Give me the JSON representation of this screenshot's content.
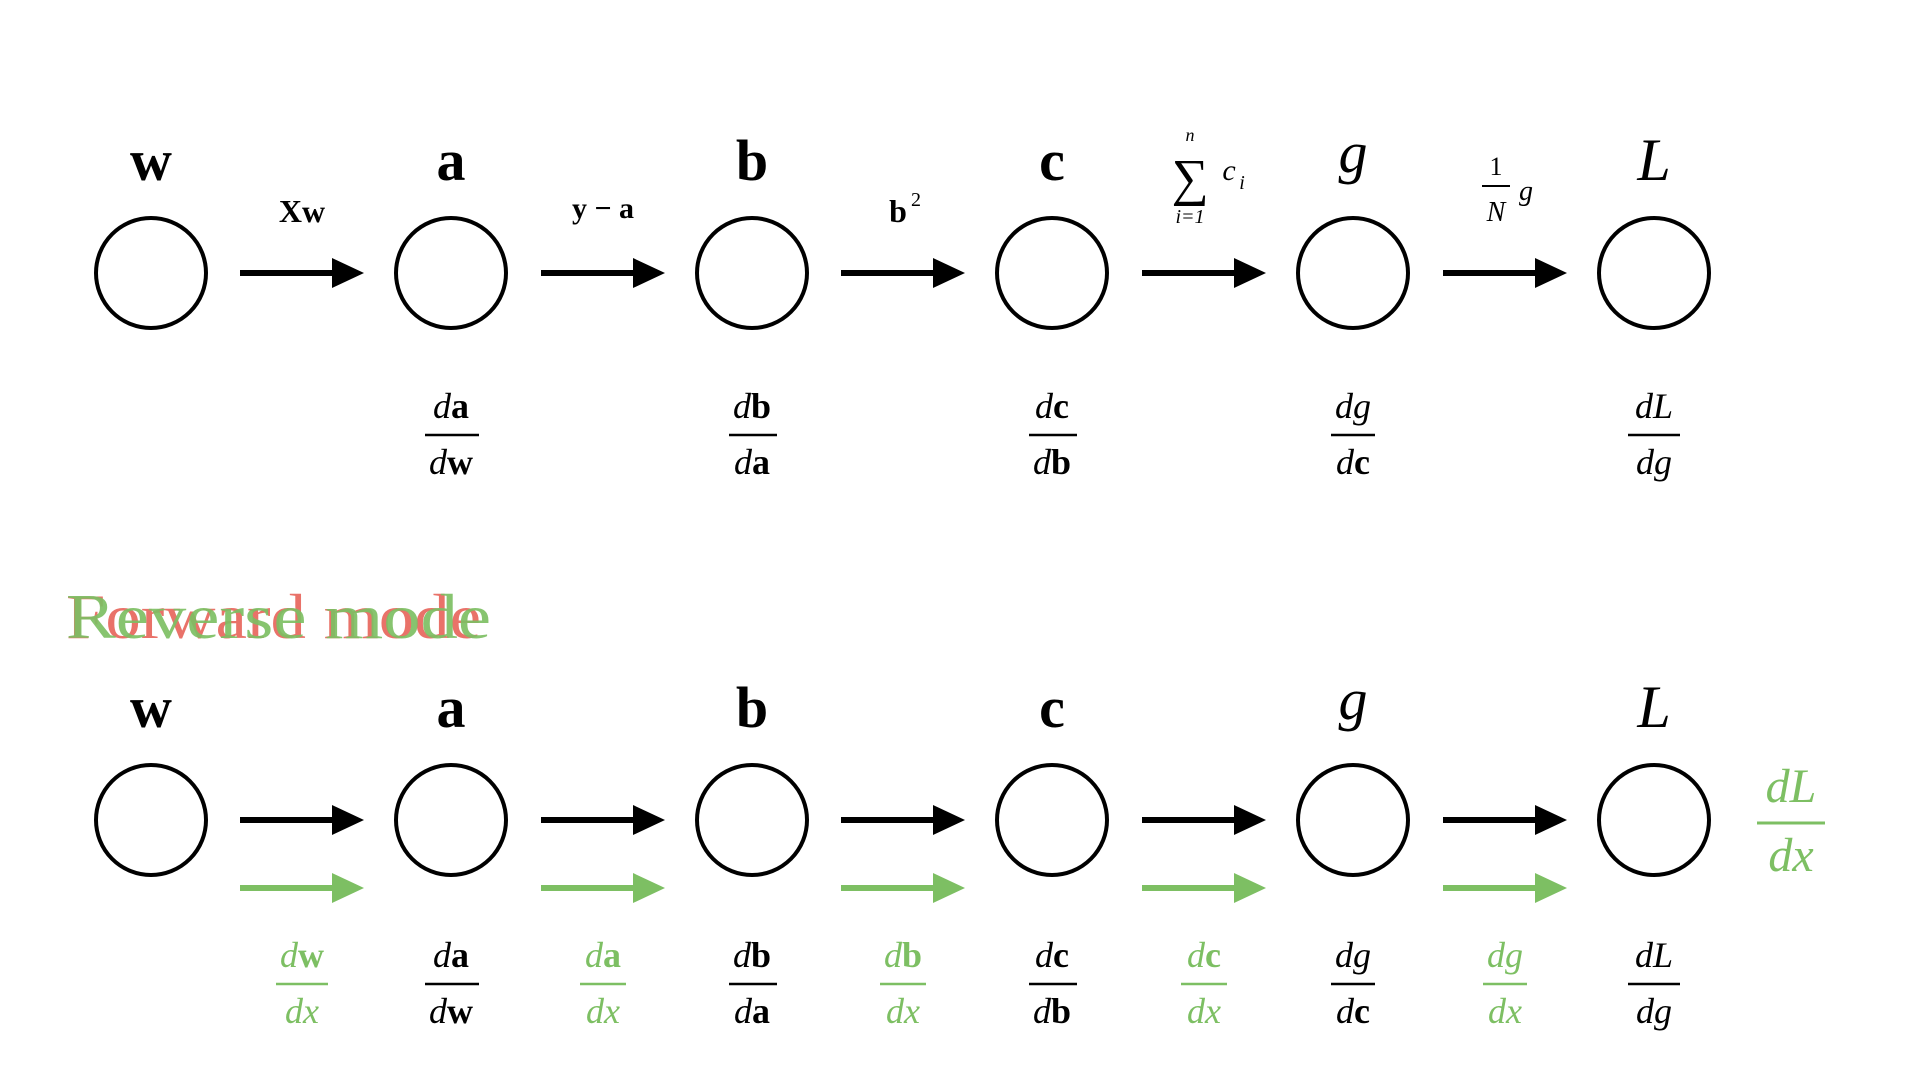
{
  "colors": {
    "ink": "#000000",
    "forward_accent": "#e8675d",
    "reverse_accent": "#7dbf63"
  },
  "mode_labels": {
    "forward": "Forward mode",
    "reverse": "Reverse mode"
  },
  "nodes": [
    {
      "id": "w",
      "label": "w",
      "style": "bold"
    },
    {
      "id": "a",
      "label": "a",
      "style": "bold"
    },
    {
      "id": "b",
      "label": "b",
      "style": "bold"
    },
    {
      "id": "c",
      "label": "c",
      "style": "bold"
    },
    {
      "id": "g",
      "label": "g",
      "style": "italic"
    },
    {
      "id": "L",
      "label": "L",
      "style": "italic"
    }
  ],
  "operations": [
    {
      "text": "Xw"
    },
    {
      "text": "y − a"
    },
    {
      "text": "b",
      "sup": "2"
    },
    {
      "text": "c",
      "sub": "i",
      "sum_top": "n",
      "sum_bottom": "i=1",
      "sum_symbol": "∑"
    },
    {
      "text": "g",
      "frac_num": "1",
      "frac_den": "N"
    }
  ],
  "local_derivatives": [
    {
      "num_d": "d",
      "num_var": "a",
      "den_d": "d",
      "den_var": "w"
    },
    {
      "num_d": "d",
      "num_var": "b",
      "den_d": "d",
      "den_var": "a"
    },
    {
      "num_d": "d",
      "num_var": "c",
      "den_d": "d",
      "den_var": "b"
    },
    {
      "num_d": "d",
      "num_var": "g",
      "den_d": "d",
      "den_var": "c"
    },
    {
      "num_d": "d",
      "num_var": "L",
      "den_d": "d",
      "den_var": "g"
    }
  ],
  "accumulated_derivatives": [
    {
      "num_d": "d",
      "num_var": "w",
      "den": "dx"
    },
    {
      "num_d": "d",
      "num_var": "a",
      "den": "dx"
    },
    {
      "num_d": "d",
      "num_var": "b",
      "den": "dx"
    },
    {
      "num_d": "d",
      "num_var": "c",
      "den": "dx"
    },
    {
      "num_d": "d",
      "num_var": "g",
      "den": "dx"
    }
  ],
  "final_derivative": {
    "num": "dL",
    "den": "dx"
  }
}
